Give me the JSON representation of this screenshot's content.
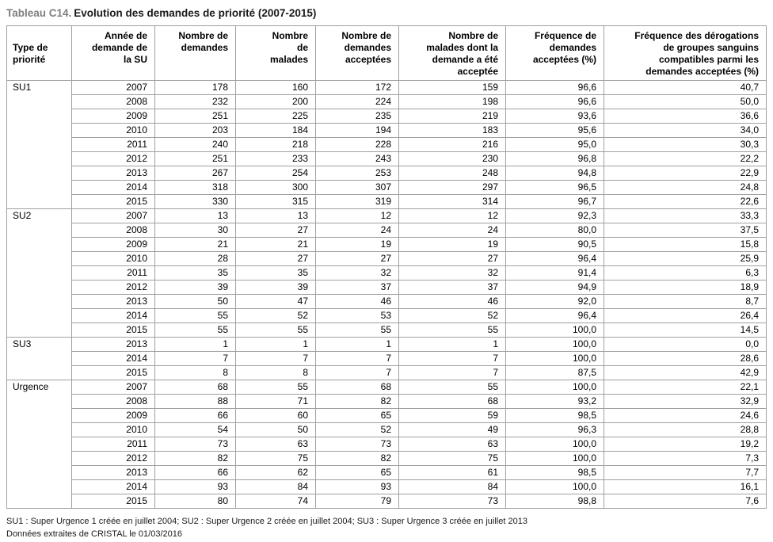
{
  "title": {
    "label": "Tableau C14.",
    "text": "Evolution des demandes de priorité (2007-2015)"
  },
  "table": {
    "headers": [
      "Type de\npriorité",
      "Année de\ndemande de\nla SU",
      "Nombre de\ndemandes",
      "Nombre\nde\nmalades",
      "Nombre de\ndemandes\nacceptées",
      "Nombre de\nmalades dont la\ndemande a été\nacceptée",
      "Fréquence de\ndemandes\nacceptées (%)",
      "Fréquence des dérogations\nde groupes sanguins\ncompatibles parmi les\ndemandes acceptées (%)"
    ],
    "groups": [
      {
        "type": "SU1",
        "rows": [
          [
            "2007",
            "178",
            "160",
            "172",
            "159",
            "96,6",
            "40,7"
          ],
          [
            "2008",
            "232",
            "200",
            "224",
            "198",
            "96,6",
            "50,0"
          ],
          [
            "2009",
            "251",
            "225",
            "235",
            "219",
            "93,6",
            "36,6"
          ],
          [
            "2010",
            "203",
            "184",
            "194",
            "183",
            "95,6",
            "34,0"
          ],
          [
            "2011",
            "240",
            "218",
            "228",
            "216",
            "95,0",
            "30,3"
          ],
          [
            "2012",
            "251",
            "233",
            "243",
            "230",
            "96,8",
            "22,2"
          ],
          [
            "2013",
            "267",
            "254",
            "253",
            "248",
            "94,8",
            "22,9"
          ],
          [
            "2014",
            "318",
            "300",
            "307",
            "297",
            "96,5",
            "24,8"
          ],
          [
            "2015",
            "330",
            "315",
            "319",
            "314",
            "96,7",
            "22,6"
          ]
        ]
      },
      {
        "type": "SU2",
        "rows": [
          [
            "2007",
            "13",
            "13",
            "12",
            "12",
            "92,3",
            "33,3"
          ],
          [
            "2008",
            "30",
            "27",
            "24",
            "24",
            "80,0",
            "37,5"
          ],
          [
            "2009",
            "21",
            "21",
            "19",
            "19",
            "90,5",
            "15,8"
          ],
          [
            "2010",
            "28",
            "27",
            "27",
            "27",
            "96,4",
            "25,9"
          ],
          [
            "2011",
            "35",
            "35",
            "32",
            "32",
            "91,4",
            "6,3"
          ],
          [
            "2012",
            "39",
            "39",
            "37",
            "37",
            "94,9",
            "18,9"
          ],
          [
            "2013",
            "50",
            "47",
            "46",
            "46",
            "92,0",
            "8,7"
          ],
          [
            "2014",
            "55",
            "52",
            "53",
            "52",
            "96,4",
            "26,4"
          ],
          [
            "2015",
            "55",
            "55",
            "55",
            "55",
            "100,0",
            "14,5"
          ]
        ]
      },
      {
        "type": "SU3",
        "rows": [
          [
            "2013",
            "1",
            "1",
            "1",
            "1",
            "100,0",
            "0,0"
          ],
          [
            "2014",
            "7",
            "7",
            "7",
            "7",
            "100,0",
            "28,6"
          ],
          [
            "2015",
            "8",
            "8",
            "7",
            "7",
            "87,5",
            "42,9"
          ]
        ]
      },
      {
        "type": "Urgence",
        "rows": [
          [
            "2007",
            "68",
            "55",
            "68",
            "55",
            "100,0",
            "22,1"
          ],
          [
            "2008",
            "88",
            "71",
            "82",
            "68",
            "93,2",
            "32,9"
          ],
          [
            "2009",
            "66",
            "60",
            "65",
            "59",
            "98,5",
            "24,6"
          ],
          [
            "2010",
            "54",
            "50",
            "52",
            "49",
            "96,3",
            "28,8"
          ],
          [
            "2011",
            "73",
            "63",
            "73",
            "63",
            "100,0",
            "19,2"
          ],
          [
            "2012",
            "82",
            "75",
            "82",
            "75",
            "100,0",
            "7,3"
          ],
          [
            "2013",
            "66",
            "62",
            "65",
            "61",
            "98,5",
            "7,7"
          ],
          [
            "2014",
            "93",
            "84",
            "93",
            "84",
            "100,0",
            "16,1"
          ],
          [
            "2015",
            "80",
            "74",
            "79",
            "73",
            "98,8",
            "7,6"
          ]
        ]
      }
    ]
  },
  "footnotes": [
    "SU1 : Super Urgence 1 créée en juillet 2004; SU2 : Super Urgence 2 créée en juillet 2004; SU3 : Super Urgence 3 créée en juillet 2013",
    "Données extraites de CRISTAL le 01/03/2016"
  ]
}
